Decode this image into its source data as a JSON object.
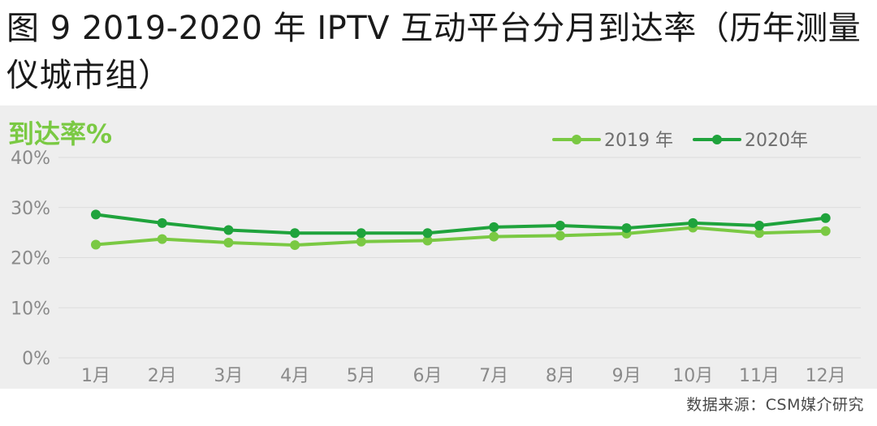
{
  "title": "图 9 2019-2020 年 IPTV 互动平台分月到达率（历年测量仪城市组）",
  "source": "数据来源：CSM媒介研究",
  "chart_data": {
    "type": "line",
    "ylabel": "到达率%",
    "categories": [
      "1月",
      "2月",
      "3月",
      "4月",
      "5月",
      "6月",
      "7月",
      "8月",
      "9月",
      "10月",
      "11月",
      "12月"
    ],
    "y_ticks": [
      "0%",
      "10%",
      "20%",
      "30%",
      "40%"
    ],
    "ylim": [
      0,
      40
    ],
    "grid": true,
    "legend_position": "top-right",
    "series": [
      {
        "name": "2019 年",
        "color": "#7ac943",
        "values": [
          22.6,
          23.7,
          23.0,
          22.5,
          23.2,
          23.4,
          24.2,
          24.4,
          24.8,
          26.0,
          24.9,
          25.3
        ]
      },
      {
        "name": "2020年",
        "color": "#1fa33c",
        "values": [
          28.6,
          26.9,
          25.5,
          24.9,
          24.9,
          24.9,
          26.1,
          26.4,
          25.9,
          26.9,
          26.4,
          27.9
        ]
      }
    ]
  }
}
